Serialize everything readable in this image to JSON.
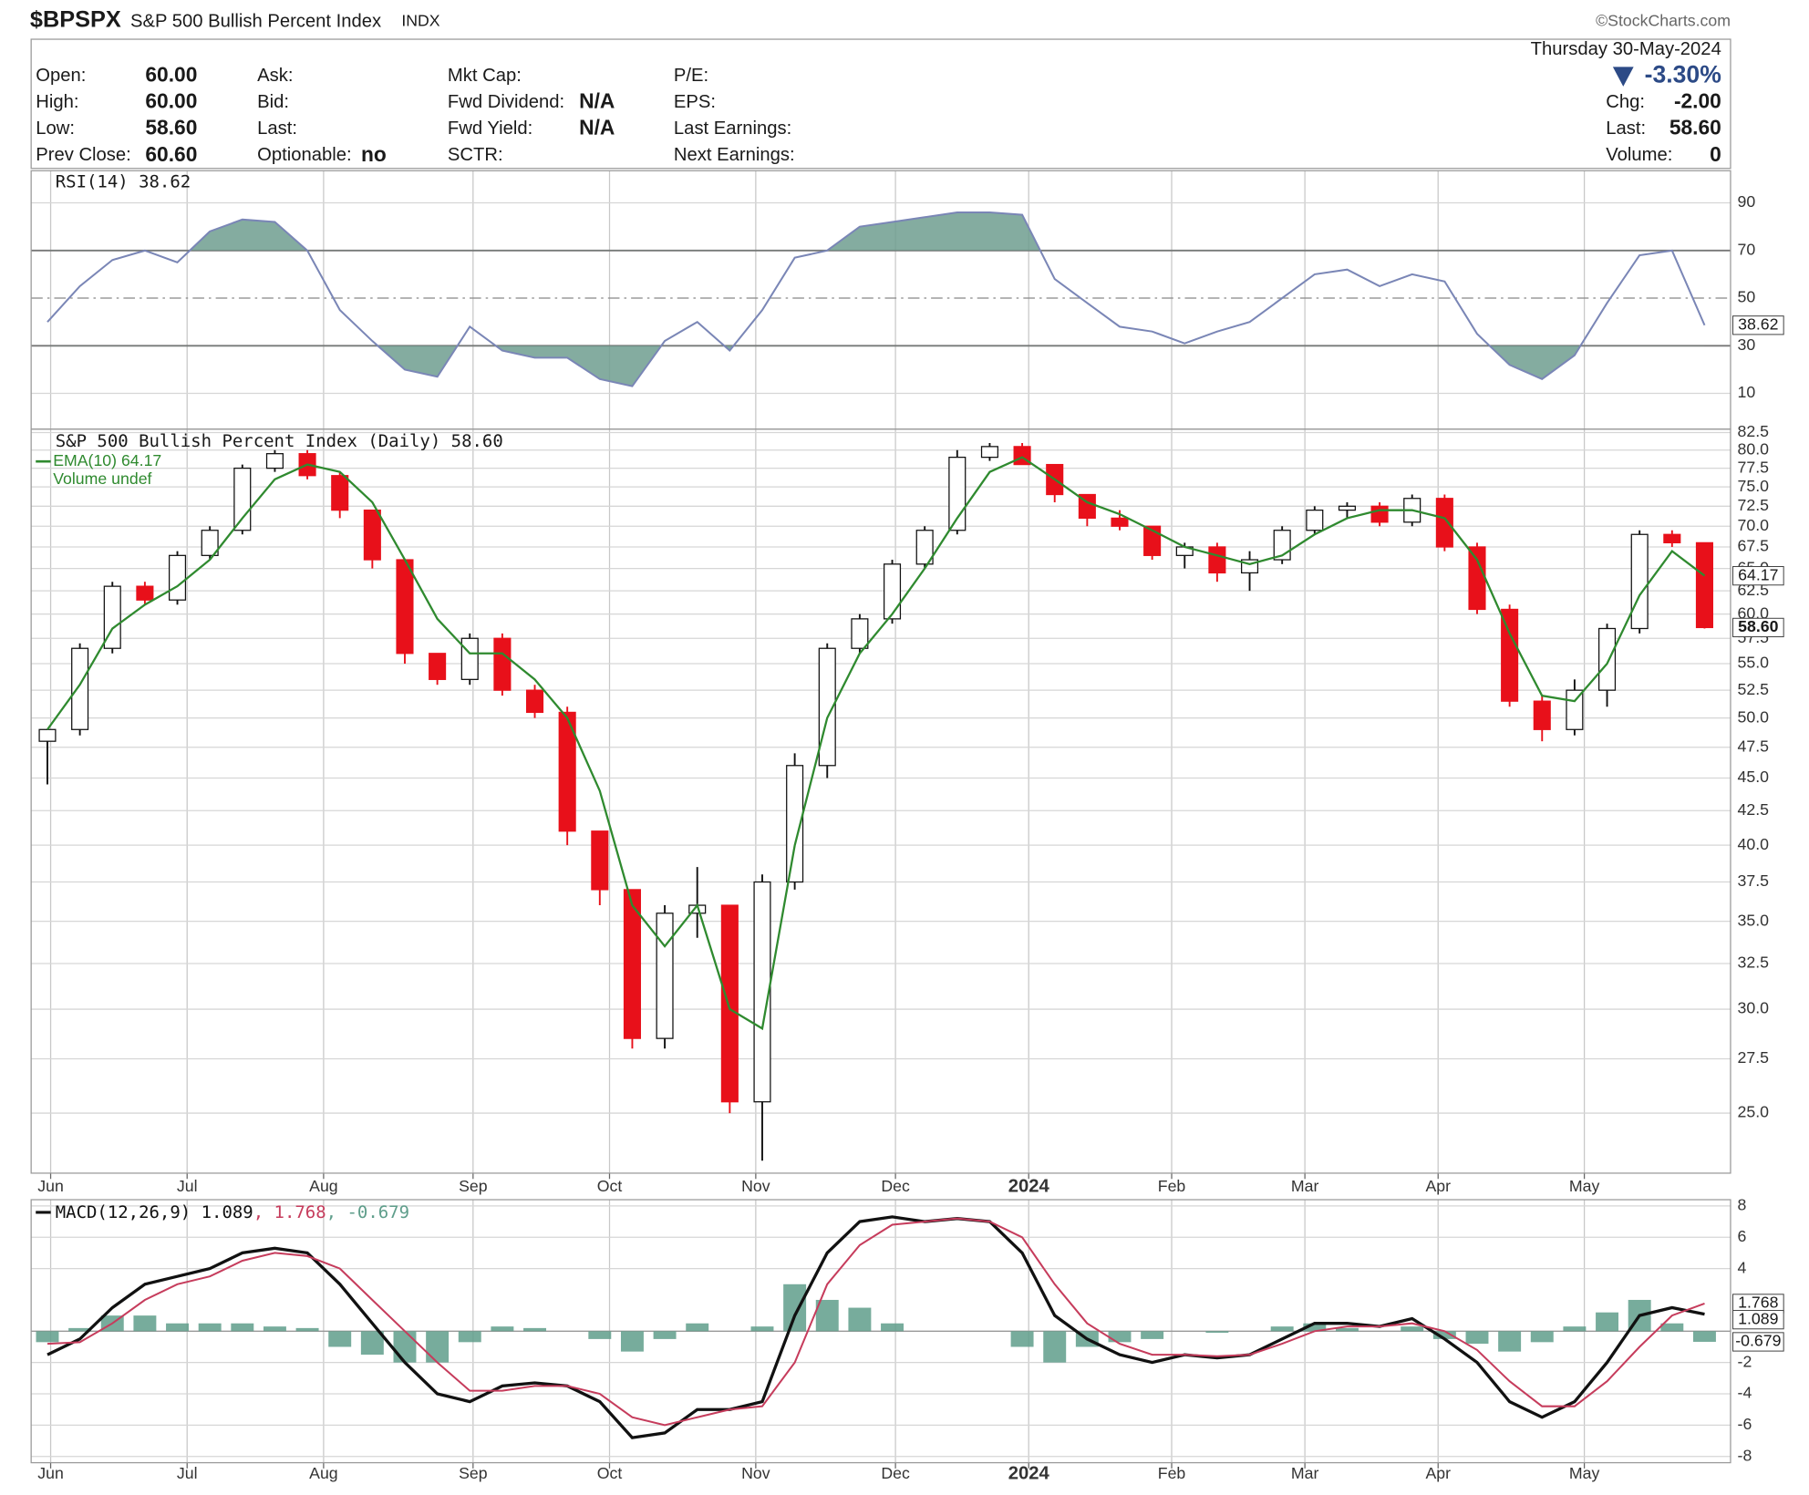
{
  "header": {
    "symbol": "$BPSPX",
    "name": "S&P 500 Bullish Percent Index",
    "exchange": "INDX",
    "source": "©StockCharts.com",
    "date": "Thursday  30-May-2024",
    "change_pct": "-3.30%",
    "fields": [
      [
        [
          "Open:",
          "60.00"
        ],
        [
          "High:",
          "60.00"
        ],
        [
          "Low:",
          "58.60"
        ],
        [
          "Prev Close:",
          "60.60"
        ]
      ],
      [
        [
          "Ask:"
        ],
        [
          "Bid:"
        ],
        [
          "Last:"
        ],
        [
          "Optionable:",
          "no"
        ]
      ],
      [
        [
          "Mkt Cap:"
        ],
        [
          "Fwd Dividend:",
          "N/A"
        ],
        [
          "Fwd Yield:",
          "N/A"
        ],
        [
          "SCTR:"
        ]
      ],
      [
        [
          "P/E:"
        ],
        [
          "EPS:"
        ],
        [
          "Last Earnings:"
        ],
        [
          "Next Earnings:"
        ]
      ]
    ],
    "quote": [
      [
        "Chg:",
        "-2.00"
      ],
      [
        "Last:",
        "58.60"
      ],
      [
        "Volume:",
        "0"
      ]
    ]
  },
  "chart_data": [
    {
      "type": "rsi",
      "name": "RSI(14) 38.62",
      "color": "#7a86b6",
      "fill": "#6f9e8f",
      "flag": "38.62",
      "x": [
        0,
        1,
        2,
        3,
        4,
        5,
        6,
        7,
        8,
        9,
        10,
        11,
        12,
        13,
        14,
        15,
        16,
        17,
        18,
        19,
        20,
        21,
        22,
        23,
        24,
        25,
        26,
        27,
        28,
        29,
        30,
        31,
        32,
        33,
        34,
        35,
        36,
        37,
        38,
        39,
        40,
        41,
        42,
        43,
        44,
        45,
        46,
        47,
        48,
        49,
        50,
        51
      ],
      "xlim": [
        -0.5,
        51.8
      ],
      "values": [
        40,
        55,
        66,
        70,
        65,
        78,
        83,
        82,
        70,
        45,
        32,
        20,
        17,
        38,
        28,
        25,
        25,
        16,
        13,
        32,
        40,
        28,
        45,
        67,
        70,
        80,
        82,
        84,
        86,
        86,
        85,
        58,
        48,
        38,
        36,
        31,
        36,
        40,
        50,
        60,
        62,
        55,
        60,
        57,
        35,
        22,
        16,
        26,
        48,
        68,
        70,
        38.62
      ],
      "ylim": [
        -5,
        103.5
      ],
      "yticks": [
        90,
        70,
        50,
        30,
        10
      ],
      "overbought": 70,
      "oversold": 30,
      "midline": 50
    },
    {
      "type": "candlestick",
      "name": "S&P 500 Bullish Percent Index (Daily) 58.60",
      "volume_label": "Volume undef",
      "log_scale": true,
      "up_color": "#ffffff",
      "down_color": "#e8101a",
      "x": [
        0,
        1,
        2,
        3,
        4,
        5,
        6,
        7,
        8,
        9,
        10,
        11,
        12,
        13,
        14,
        15,
        16,
        17,
        18,
        19,
        20,
        21,
        22,
        23,
        24,
        25,
        26,
        27,
        28,
        29,
        30,
        31,
        32,
        33,
        34,
        35,
        36,
        37,
        38,
        39,
        40,
        41,
        42,
        43,
        44,
        45,
        46,
        47,
        48,
        49,
        50,
        51
      ],
      "xlim": [
        -0.5,
        51.8
      ],
      "xticks": [
        {
          "value": 0.1,
          "label": "Jun"
        },
        {
          "value": 4.3,
          "label": "Jul"
        },
        {
          "value": 8.5,
          "label": "Aug"
        },
        {
          "value": 13.1,
          "label": "Sep"
        },
        {
          "value": 17.3,
          "label": "Oct"
        },
        {
          "value": 21.8,
          "label": "Nov"
        },
        {
          "value": 26.1,
          "label": "Dec"
        },
        {
          "value": 30.2,
          "label": "2024"
        },
        {
          "value": 34.6,
          "label": "Feb"
        },
        {
          "value": 38.7,
          "label": "Mar"
        },
        {
          "value": 42.8,
          "label": "Apr"
        },
        {
          "value": 47.3,
          "label": "May"
        }
      ],
      "open": [
        48,
        49,
        56.5,
        63,
        61.5,
        66.5,
        69.5,
        77.5,
        79.5,
        76.5,
        72,
        66,
        56,
        53.5,
        57.5,
        52.5,
        50.5,
        41,
        37,
        28.5,
        35.5,
        36,
        25.5,
        37.5,
        46,
        56.5,
        59.5,
        65.5,
        69.5,
        79,
        80.5,
        78,
        74,
        71,
        70,
        66.5,
        67.5,
        64.5,
        66,
        69.5,
        72,
        72.5,
        70.5,
        73.5,
        67.5,
        60.5,
        51.5,
        49,
        52.5,
        58.5,
        69,
        68
      ],
      "high": [
        49,
        57,
        63.5,
        63.5,
        67,
        70,
        78,
        80,
        80,
        77,
        72,
        66,
        56,
        58,
        58,
        53,
        51,
        41,
        37,
        36,
        38.5,
        36,
        38,
        47,
        57,
        60,
        66,
        70,
        80,
        81,
        81,
        78,
        74,
        72,
        70,
        68,
        68,
        67,
        70,
        72.5,
        73,
        73,
        74,
        74,
        68,
        61,
        52,
        53.5,
        59,
        69.5,
        69.5,
        68
      ],
      "low": [
        44.5,
        48.5,
        56,
        61,
        61,
        66,
        69,
        77,
        76,
        71,
        65,
        55,
        53,
        53,
        52,
        50,
        40,
        36,
        28,
        28,
        34,
        25,
        23,
        37,
        45,
        56,
        59,
        65,
        69,
        78.5,
        78,
        73,
        70,
        69.5,
        66,
        65,
        63.5,
        62.5,
        65.5,
        69,
        71,
        70,
        70,
        67,
        60,
        51,
        48,
        48.5,
        51,
        58,
        67.5,
        58.5
      ],
      "close": [
        49,
        56.5,
        63,
        61.5,
        66.5,
        69.5,
        77.5,
        79.5,
        76.5,
        72,
        66,
        56,
        53.5,
        57.5,
        52.5,
        50.5,
        41,
        37,
        28.5,
        35.5,
        36,
        25.5,
        37.5,
        46,
        56.5,
        59.5,
        65.5,
        69.5,
        79,
        80.5,
        78,
        74,
        71,
        70,
        66.5,
        67.5,
        64.5,
        66,
        69.5,
        72,
        72.5,
        70.5,
        73.5,
        67.5,
        60.5,
        51.5,
        49,
        52.5,
        58.5,
        69,
        68,
        58.6
      ],
      "close_flag": "58.60",
      "series": [
        {
          "name": "EMA(10) 64.17",
          "color": "#2f8a2f",
          "flag": "64.17",
          "values": [
            49,
            53,
            58.5,
            61,
            63,
            66,
            71,
            76,
            78,
            77,
            73,
            66,
            59.5,
            56,
            56,
            53.5,
            50,
            44,
            36,
            33.5,
            36,
            30,
            29,
            40,
            50,
            56,
            60,
            65,
            71,
            77,
            79,
            76,
            73,
            71.5,
            69.5,
            67.5,
            66.5,
            65.5,
            66.5,
            69,
            71,
            72,
            72,
            71,
            66,
            58,
            52,
            51.5,
            55,
            62,
            67,
            64.17
          ]
        }
      ],
      "ylim": [
        22.5,
        83
      ],
      "yticks": [
        {
          "value": 25,
          "label": "25.0"
        },
        {
          "value": 27.5,
          "label": "27.5"
        },
        {
          "value": 30,
          "label": "30.0"
        },
        {
          "value": 32.5,
          "label": "32.5"
        },
        {
          "value": 35,
          "label": "35.0"
        },
        {
          "value": 37.5,
          "label": "37.5"
        },
        {
          "value": 40,
          "label": "40.0"
        },
        {
          "value": 42.5,
          "label": "42.5"
        },
        {
          "value": 45,
          "label": "45.0"
        },
        {
          "value": 47.5,
          "label": "47.5"
        },
        {
          "value": 50,
          "label": "50.0"
        },
        {
          "value": 52.5,
          "label": "52.5"
        },
        {
          "value": 55,
          "label": "55.0"
        },
        {
          "value": 57.5,
          "label": "57.5"
        },
        {
          "value": 60,
          "label": "60.0"
        },
        {
          "value": 62.5,
          "label": "62.5"
        },
        {
          "value": 65,
          "label": "65.0"
        },
        {
          "value": 67.5,
          "label": "67.5"
        },
        {
          "value": 70,
          "label": "70.0"
        },
        {
          "value": 72.5,
          "label": "72.5"
        },
        {
          "value": 75,
          "label": "75.0"
        },
        {
          "value": 77.5,
          "label": "77.5"
        },
        {
          "value": 80,
          "label": "80.0"
        },
        {
          "value": 82.5,
          "label": "82.5"
        }
      ]
    },
    {
      "type": "macd",
      "x": [
        0,
        1,
        2,
        3,
        4,
        5,
        6,
        7,
        8,
        9,
        10,
        11,
        12,
        13,
        14,
        15,
        16,
        17,
        18,
        19,
        20,
        21,
        22,
        23,
        24,
        25,
        26,
        27,
        28,
        29,
        30,
        31,
        32,
        33,
        34,
        35,
        36,
        37,
        38,
        39,
        40,
        41,
        42,
        43,
        44,
        45,
        46,
        47,
        48,
        49,
        50,
        51
      ],
      "xlim": [
        -0.5,
        51.8
      ],
      "xticks": [
        {
          "value": 0.1,
          "label": "Jun"
        },
        {
          "value": 4.3,
          "label": "Jul"
        },
        {
          "value": 8.5,
          "label": "Aug"
        },
        {
          "value": 13.1,
          "label": "Sep"
        },
        {
          "value": 17.3,
          "label": "Oct"
        },
        {
          "value": 21.8,
          "label": "Nov"
        },
        {
          "value": 26.1,
          "label": "Dec"
        },
        {
          "value": 30.2,
          "label": "2024"
        },
        {
          "value": 34.6,
          "label": "Feb"
        },
        {
          "value": 38.7,
          "label": "Mar"
        },
        {
          "value": 42.8,
          "label": "Apr"
        },
        {
          "value": 47.3,
          "label": "May"
        }
      ],
      "series": [
        {
          "name": "MACD(12,26,9) 1.089",
          "color": "#111111",
          "flag": "1.089",
          "values": [
            -1.5,
            -0.5,
            1.5,
            3,
            3.5,
            4,
            5,
            5.3,
            5,
            3,
            0.5,
            -2,
            -4,
            -4.5,
            -3.5,
            -3.3,
            -3.5,
            -4.5,
            -6.8,
            -6.5,
            -5,
            -5,
            -4.5,
            1,
            5,
            7,
            7.3,
            7,
            7.2,
            7,
            5,
            1,
            -0.5,
            -1.5,
            -2,
            -1.5,
            -1.7,
            -1.5,
            -0.5,
            0.5,
            0.5,
            0.3,
            0.8,
            -0.5,
            -2,
            -4.5,
            -5.5,
            -4.5,
            -2,
            1,
            1.5,
            1.089
          ]
        },
        {
          "name": ", 1.768",
          "color": "#c63c5c",
          "flag": "1.768",
          "values": [
            -0.8,
            -0.7,
            0.5,
            2,
            3,
            3.5,
            4.5,
            5,
            4.8,
            4,
            2,
            0,
            -2,
            -3.8,
            -3.8,
            -3.5,
            -3.5,
            -4,
            -5.5,
            -6,
            -5.5,
            -5,
            -4.8,
            -2,
            3,
            5.5,
            6.8,
            7,
            7.2,
            7,
            6,
            3,
            0.5,
            -0.8,
            -1.5,
            -1.5,
            -1.6,
            -1.5,
            -0.8,
            0,
            0.3,
            0.3,
            0.5,
            0,
            -1.2,
            -3.2,
            -4.8,
            -4.8,
            -3.2,
            -1,
            1,
            1.768
          ]
        },
        {
          "name": ", -0.679",
          "color": "#5f9e8b",
          "flag": "-0.679",
          "kind": "histogram",
          "values": [
            -0.7,
            0.2,
            1,
            1,
            0.5,
            0.5,
            0.5,
            0.3,
            0.2,
            -1,
            -1.5,
            -2,
            -2,
            -0.7,
            0.3,
            0.2,
            0,
            -0.5,
            -1.3,
            -0.5,
            0.5,
            0,
            0.3,
            3,
            2,
            1.5,
            0.5,
            0,
            0,
            0,
            -1,
            -2,
            -1,
            -0.7,
            -0.5,
            0,
            -0.1,
            0,
            0.3,
            0.5,
            0.2,
            0,
            0.3,
            -0.5,
            -0.8,
            -1.3,
            -0.7,
            0.3,
            1.2,
            2,
            0.5,
            -0.679
          ]
        }
      ],
      "ylim": [
        -8.4,
        8.4
      ],
      "yticks": [
        8,
        6,
        4,
        -2,
        -4,
        -6,
        -8
      ]
    }
  ]
}
